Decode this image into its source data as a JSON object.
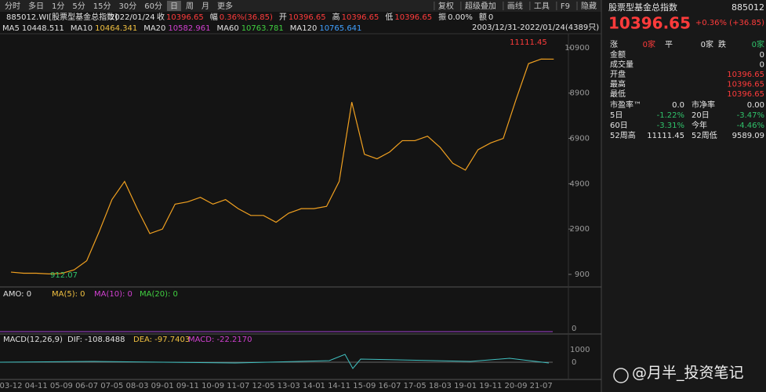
{
  "toolbar": {
    "left": [
      "分时",
      "多日",
      "1分",
      "5分",
      "15分",
      "30分",
      "60分",
      "日",
      "周",
      "月",
      "更多"
    ],
    "right": [
      "复权",
      "超级叠加",
      "画线",
      "工具",
      "F9",
      "隐藏"
    ]
  },
  "header": {
    "code": "885012.WI[股票型基金总指数]",
    "date": "2022/01/24",
    "items": [
      {
        "label": "收",
        "value": "10396.65"
      },
      {
        "label": "幅",
        "value": "0.36%(36.85)"
      },
      {
        "label": "开",
        "value": "10396.65"
      },
      {
        "label": "高",
        "value": "10396.65"
      },
      {
        "label": "低",
        "value": "10396.65"
      },
      {
        "label": "振",
        "value": "0.00%"
      },
      {
        "label": "额",
        "value": "0"
      }
    ]
  },
  "ma_legend": [
    {
      "name": "MA5",
      "value": "10448.511"
    },
    {
      "name": "MA10",
      "value": "10464.341"
    },
    {
      "name": "MA20",
      "value": "10582.961"
    },
    {
      "name": "MA60",
      "value": "10763.781"
    },
    {
      "name": "MA120",
      "value": "10765.641"
    }
  ],
  "range_label": "2003/12/31-2022/01/24(4389只)",
  "chart_data": {
    "type": "line",
    "x": [
      "03-12",
      null,
      "04-11",
      null,
      "05-09",
      null,
      "06-07",
      null,
      "07-05",
      null,
      "08-03",
      null,
      "09-01",
      null,
      "09-11",
      null,
      "10-09",
      null,
      "11-07",
      null,
      "12-05",
      null,
      "13-03",
      null,
      "14-01",
      null,
      "14-11",
      null,
      "15-09",
      null,
      "16-07",
      null,
      "17-05",
      null,
      "18-03",
      null,
      "19-01",
      null,
      "19-11",
      null,
      "20-09",
      null,
      "21-07",
      null
    ],
    "values": [
      1000,
      950,
      950,
      920,
      940,
      1100,
      1500,
      2800,
      4200,
      5000,
      3800,
      2700,
      2900,
      4000,
      4100,
      4300,
      4000,
      4200,
      3800,
      3500,
      3500,
      3200,
      3600,
      3800,
      3800,
      3900,
      5000,
      8500,
      6200,
      6000,
      6300,
      6800,
      6800,
      7000,
      6500,
      5800,
      5500,
      6400,
      6700,
      6900,
      8600,
      10200,
      10400,
      10396.65
    ],
    "color": "#f0a020",
    "ylim": [
      380,
      11450
    ],
    "yticks": [
      900,
      2900,
      4900,
      6900,
      8900,
      10900
    ],
    "high_label": "11111.45",
    "low_label": "912.07"
  },
  "amo_legend": [
    "AMO: 0",
    "MA(5): 0",
    "MA(10): 0",
    "MA(20): 0"
  ],
  "amo_tick": "0",
  "macd_legend": [
    "MACD(12,26,9)",
    "DIF: -108.8488",
    "DEA: -97.7403",
    "MACD: -22.2170"
  ],
  "macd_ticks": [
    "1000",
    "0"
  ],
  "side_panel": {
    "title": "股票型基金总指数",
    "code": "885012",
    "price": "10396.65",
    "change": "+0.36% (+36.85)",
    "breadth": [
      "涨",
      "0家",
      "平",
      "0家",
      "跌",
      "0家"
    ],
    "rows": [
      [
        "金额",
        "0"
      ],
      [
        "成交量",
        "0"
      ],
      [
        "开盘",
        "10396.65"
      ],
      [
        "最高",
        "10396.65"
      ],
      [
        "最低",
        "10396.65"
      ]
    ],
    "pairs": [
      [
        "市盈率™",
        "0.0",
        "市净率",
        "0.00"
      ],
      [
        "5日",
        "-1.22%",
        "20日",
        "-3.47%"
      ],
      [
        "60日",
        "-3.31%",
        "今年",
        "-4.46%"
      ],
      [
        "52周高",
        "11111.45",
        "52周低",
        "9589.09"
      ]
    ]
  },
  "watermark": "@月半_投资笔记"
}
